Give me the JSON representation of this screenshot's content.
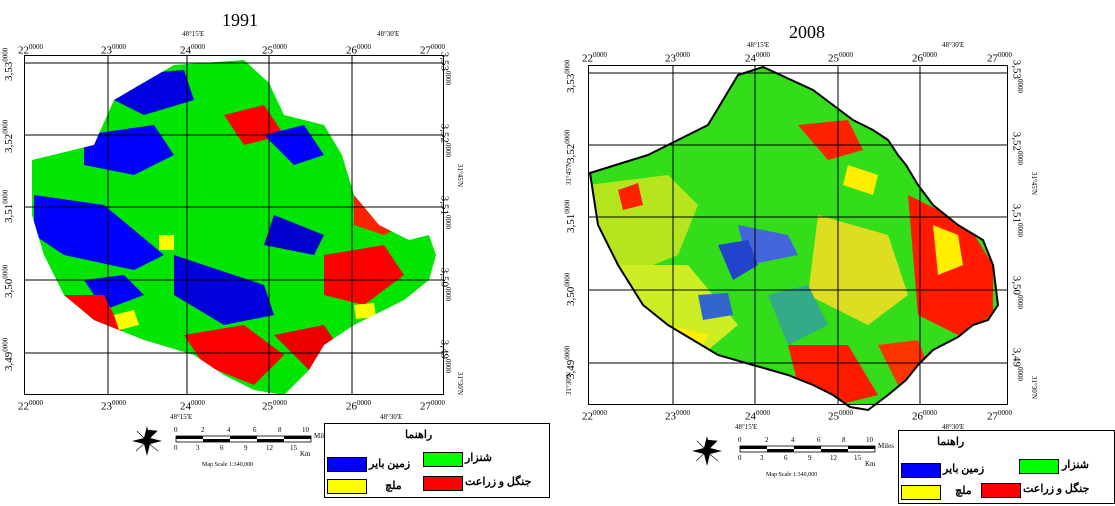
{
  "maps": [
    {
      "year": "1991",
      "x_ticks": [
        "22",
        "23",
        "24",
        "25",
        "26",
        "27"
      ],
      "tick_suffix": "0000",
      "y_ticks": [
        "3,53",
        "3,52",
        "3,51",
        "3,50",
        "3,49"
      ],
      "dms_top": [
        "48°15'E",
        "48°30'E"
      ],
      "dms_bottom": [
        "48°15'E",
        "48°30'E"
      ],
      "dms_right": [
        "31°45'N",
        "31°30'N"
      ],
      "scale_miles": [
        "0",
        "2",
        "4",
        "6",
        "8",
        "10"
      ],
      "scale_miles_unit": "Miles",
      "scale_km": [
        "0",
        "3",
        "6",
        "9",
        "12",
        "15"
      ],
      "scale_km_unit": "Km",
      "map_scale": "Map Scale 1:340,000",
      "legend": {
        "title": "راهنما",
        "items": [
          {
            "label": "شنزار",
            "color": "#00ff00"
          },
          {
            "label": "زمین بایر",
            "color": "#0000ff"
          },
          {
            "label": "جنگل و زراعت",
            "color": "#ff0000"
          },
          {
            "label": "ملچ",
            "color": "#ffff00"
          }
        ]
      }
    },
    {
      "year": "2008",
      "x_ticks": [
        "22",
        "23",
        "24",
        "25",
        "26",
        "27"
      ],
      "tick_suffix": "0000",
      "y_ticks": [
        "3,53",
        "3,52",
        "3,51",
        "3,50",
        "3,49"
      ],
      "dms_top": [
        "48°15'E",
        "48°30'E"
      ],
      "dms_bottom": [
        "48°15'E",
        "48°30'E"
      ],
      "dms_left": [
        "31°45'N",
        "31°30'N"
      ],
      "dms_right": [
        "31°45'N",
        "31°30'N"
      ],
      "scale_miles": [
        "0",
        "2",
        "4",
        "6",
        "8",
        "10"
      ],
      "scale_miles_unit": "Miles",
      "scale_km": [
        "0",
        "3",
        "6",
        "9",
        "12",
        "15"
      ],
      "scale_km_unit": "Km",
      "map_scale": "Map Scale 1:340,000",
      "legend": {
        "title": "راهنما",
        "items": [
          {
            "label": "شنزار",
            "color": "#00ff00"
          },
          {
            "label": "زمین بایر",
            "color": "#0000ff"
          },
          {
            "label": "جنگل و زراعت",
            "color": "#ff0000"
          },
          {
            "label": "ملچ",
            "color": "#ffff00"
          }
        ]
      }
    }
  ]
}
